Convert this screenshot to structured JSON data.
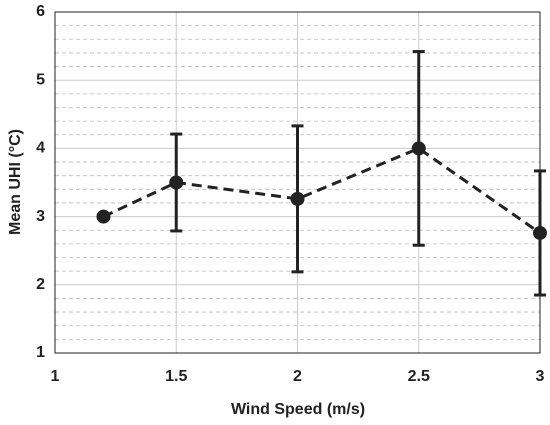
{
  "chart_data": {
    "type": "errorbar-line",
    "xlabel": "Wind Speed (m/s)",
    "ylabel": "Mean UHI (°C)",
    "x": [
      1.2,
      1.5,
      2,
      2.5,
      3
    ],
    "values": [
      3.0,
      3.5,
      3.26,
      4.0,
      2.76
    ],
    "errors": [
      null,
      0.71,
      1.07,
      1.42,
      0.91
    ],
    "color": "#222222",
    "line_style": "dashed",
    "xlim": [
      1,
      3
    ],
    "xticks": [
      1,
      1.5,
      2,
      2.5,
      3
    ],
    "ylim": [
      1,
      6
    ],
    "yticks": [
      1,
      2,
      3,
      4,
      5,
      6
    ],
    "yminorticks": [
      1.2,
      1.4,
      1.6,
      1.8,
      2.2,
      2.4,
      2.6,
      2.8,
      3.2,
      3.4,
      3.6,
      3.8,
      4.2,
      4.4,
      4.6,
      4.8,
      5.2,
      5.4,
      5.6,
      5.8
    ],
    "grid": true,
    "minor_grid": true
  }
}
